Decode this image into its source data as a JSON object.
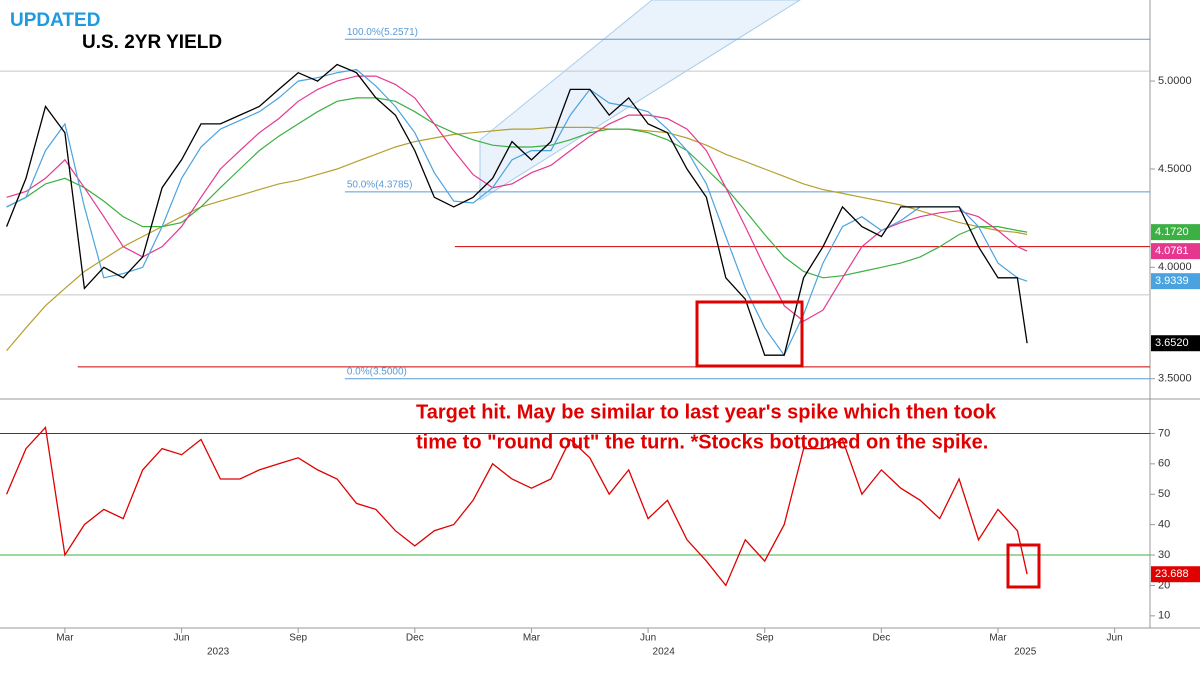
{
  "chart_data": [
    {
      "type": "line",
      "subtitle": "UPDATED",
      "title": "U.S. 2YR YIELD",
      "log_scale": true,
      "xlim": [
        0.33,
        29.91
      ],
      "ylim": [
        3.42,
        5.51
      ],
      "yticks": [
        {
          "value": 3.5,
          "label": "3.5000"
        },
        {
          "value": 4.0,
          "label": "4.0000"
        },
        {
          "value": 4.5,
          "label": "4.5000"
        },
        {
          "value": 5.0,
          "label": "5.0000"
        }
      ],
      "x": [
        0.5,
        1,
        1.5,
        2,
        2.5,
        3,
        3.5,
        4,
        4.5,
        5,
        5.5,
        6,
        6.5,
        7,
        7.5,
        8,
        8.5,
        9,
        9.5,
        10,
        10.5,
        11,
        11.5,
        12,
        12.5,
        13,
        13.5,
        14,
        14.5,
        15,
        15.5,
        16,
        16.5,
        17,
        17.5,
        18,
        18.5,
        19,
        19.5,
        20,
        20.5,
        21,
        21.5,
        22,
        22.5,
        23,
        23.5,
        24,
        24.5,
        25,
        25.5,
        26,
        26.5,
        26.75
      ],
      "series": [
        {
          "color": "#b5a030",
          "values": [
            3.62,
            3.72,
            3.82,
            3.9,
            3.98,
            4.04,
            4.1,
            4.15,
            4.2,
            4.25,
            4.3,
            4.33,
            4.36,
            4.39,
            4.42,
            4.44,
            4.47,
            4.5,
            4.54,
            4.58,
            4.62,
            4.65,
            4.67,
            4.69,
            4.7,
            4.71,
            4.72,
            4.72,
            4.73,
            4.73,
            4.73,
            4.72,
            4.72,
            4.71,
            4.7,
            4.67,
            4.63,
            4.58,
            4.54,
            4.5,
            4.46,
            4.42,
            4.39,
            4.37,
            4.35,
            4.33,
            4.31,
            4.28,
            4.25,
            4.22,
            4.2,
            4.18,
            4.17,
            4.16
          ]
        },
        {
          "color": "#3cb043",
          "last_label": "4.1720",
          "values": [
            4.3,
            4.35,
            4.42,
            4.45,
            4.4,
            4.33,
            4.25,
            4.2,
            4.2,
            4.22,
            4.3,
            4.4,
            4.5,
            4.6,
            4.68,
            4.75,
            4.82,
            4.88,
            4.9,
            4.9,
            4.88,
            4.82,
            4.75,
            4.7,
            4.66,
            4.63,
            4.62,
            4.62,
            4.63,
            4.66,
            4.7,
            4.72,
            4.72,
            4.7,
            4.66,
            4.6,
            4.5,
            4.4,
            4.28,
            4.16,
            4.05,
            3.98,
            3.95,
            3.96,
            3.98,
            4.0,
            4.02,
            4.05,
            4.1,
            4.16,
            4.2,
            4.2,
            4.18,
            4.172
          ]
        },
        {
          "color": "#e6378f",
          "last_label": "4.0781",
          "values": [
            4.35,
            4.38,
            4.45,
            4.55,
            4.4,
            4.25,
            4.1,
            4.05,
            4.1,
            4.2,
            4.35,
            4.5,
            4.6,
            4.7,
            4.78,
            4.88,
            4.95,
            5.0,
            5.03,
            5.03,
            4.98,
            4.9,
            4.75,
            4.6,
            4.47,
            4.4,
            4.42,
            4.48,
            4.52,
            4.6,
            4.68,
            4.75,
            4.8,
            4.8,
            4.78,
            4.72,
            4.6,
            4.4,
            4.2,
            4.0,
            3.82,
            3.75,
            3.8,
            3.95,
            4.1,
            4.18,
            4.22,
            4.25,
            4.27,
            4.28,
            4.25,
            4.18,
            4.1,
            4.0781
          ]
        },
        {
          "color": "#4aa3df",
          "last_label": "3.9339",
          "values": [
            4.3,
            4.35,
            4.6,
            4.75,
            4.3,
            3.95,
            3.97,
            4.0,
            4.2,
            4.45,
            4.62,
            4.72,
            4.77,
            4.82,
            4.9,
            5.0,
            5.02,
            5.05,
            5.07,
            4.97,
            4.85,
            4.7,
            4.48,
            4.33,
            4.32,
            4.4,
            4.55,
            4.6,
            4.6,
            4.8,
            4.95,
            4.87,
            4.85,
            4.82,
            4.72,
            4.6,
            4.42,
            4.15,
            3.9,
            3.72,
            3.6,
            3.78,
            4.02,
            4.2,
            4.25,
            4.18,
            4.23,
            4.3,
            4.3,
            4.3,
            4.2,
            4.02,
            3.95,
            3.9339
          ]
        },
        {
          "color": "#000000",
          "last_label": "3.6520",
          "values": [
            4.2,
            4.45,
            4.85,
            4.7,
            3.9,
            4.0,
            3.95,
            4.05,
            4.4,
            4.55,
            4.75,
            4.75,
            4.8,
            4.85,
            4.95,
            5.05,
            5.0,
            5.1,
            5.05,
            4.9,
            4.8,
            4.6,
            4.35,
            4.3,
            4.35,
            4.45,
            4.65,
            4.55,
            4.65,
            4.95,
            4.95,
            4.8,
            4.9,
            4.75,
            4.7,
            4.5,
            4.35,
            3.95,
            3.85,
            3.6,
            3.6,
            3.95,
            4.1,
            4.3,
            4.2,
            4.15,
            4.3,
            4.3,
            4.3,
            4.3,
            4.1,
            3.95,
            3.95,
            3.652
          ]
        }
      ],
      "reference_lines": [
        {
          "value": 5.2571,
          "x0": 9.2,
          "color": "#5b9bd5",
          "label": "100.0%(5.2571)"
        },
        {
          "value": 5.06,
          "color": "#c8c8c8"
        },
        {
          "value": 4.3785,
          "x0": 9.2,
          "color": "#5b9bd5",
          "label": "50.0%(4.3785)"
        },
        {
          "value": 4.1,
          "x0": 12.03,
          "color": "#d00000"
        },
        {
          "value": 3.87,
          "color": "#c8c8c8"
        },
        {
          "value": 3.55,
          "x0": 2.33,
          "color": "#d00000"
        },
        {
          "value": 3.5,
          "x0": 9.2,
          "color": "#5b9bd5",
          "label": "0.0%(3.5000)"
        }
      ],
      "annotations": [
        "Target hit. May be similar to last year's spike which then took",
        "time to \"round out\" the turn. *Stocks bottomed on the spike."
      ]
    },
    {
      "type": "line",
      "xlim": [
        0.33,
        29.91
      ],
      "ylim": [
        6,
        81
      ],
      "yticks": [
        10,
        20,
        30,
        40,
        50,
        60,
        70
      ],
      "x": [
        0.5,
        1,
        1.5,
        2,
        2.5,
        3,
        3.5,
        4,
        4.5,
        5,
        5.5,
        6,
        6.5,
        7,
        7.5,
        8,
        8.5,
        9,
        9.5,
        10,
        10.5,
        11,
        11.5,
        12,
        12.5,
        13,
        13.5,
        14,
        14.5,
        15,
        15.5,
        16,
        16.5,
        17,
        17.5,
        18,
        18.5,
        19,
        19.5,
        20,
        20.5,
        21,
        21.5,
        22,
        22.5,
        23,
        23.5,
        24,
        24.5,
        25,
        25.5,
        26,
        26.5,
        26.75
      ],
      "series": [
        {
          "color": "#e00000",
          "last_label": "23.688",
          "values": [
            50,
            65,
            72,
            30,
            40,
            45,
            42,
            58,
            65,
            63,
            68,
            55,
            55,
            58,
            60,
            62,
            58,
            55,
            47,
            45,
            38,
            33,
            38,
            40,
            48,
            60,
            55,
            52,
            55,
            68,
            62,
            50,
            58,
            42,
            48,
            35,
            28,
            20,
            35,
            28,
            40,
            65,
            65,
            68,
            50,
            58,
            52,
            48,
            42,
            55,
            35,
            45,
            38,
            23.688
          ]
        }
      ],
      "reference_lines": [
        {
          "value": 70,
          "color": "#d00000"
        },
        {
          "value": 30,
          "color": "#3cb043"
        }
      ],
      "xticks": [
        {
          "value": 2,
          "label": "Mar"
        },
        {
          "value": 5,
          "label": "Jun"
        },
        {
          "value": 8,
          "label": "Sep"
        },
        {
          "value": 11,
          "label": "Dec"
        },
        {
          "value": 14,
          "label": "Mar"
        },
        {
          "value": 17,
          "label": "Jun"
        },
        {
          "value": 20,
          "label": "Sep"
        },
        {
          "value": 23,
          "label": "Dec"
        },
        {
          "value": 26,
          "label": "Mar"
        },
        {
          "value": 29,
          "label": "Jun"
        }
      ],
      "year_ticks": [
        {
          "value": 5.94,
          "label": "2023"
        },
        {
          "value": 17.4,
          "label": "2024"
        },
        {
          "value": 26.7,
          "label": "2025"
        }
      ]
    }
  ]
}
